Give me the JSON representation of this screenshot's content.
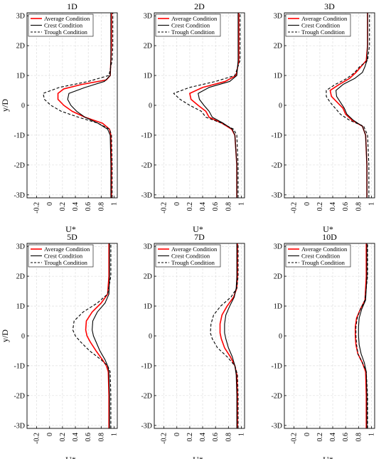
{
  "figure": {
    "ylabel": "y/D",
    "xlabel": "U*"
  },
  "legend": {
    "entries": [
      {
        "label": "Average Condition",
        "color": "#ff0000",
        "dash": "solid"
      },
      {
        "label": "Crest Condition",
        "color": "#000000",
        "dash": "solid"
      },
      {
        "label": "Trough Condition",
        "color": "#000000",
        "dash": "dashed"
      }
    ]
  },
  "chart_data": [
    {
      "type": "line",
      "title": "1D",
      "xlabel": "U*",
      "ylabel": "y/D",
      "xlim": [
        -0.35,
        1.05
      ],
      "ylim": [
        -3.1,
        3.1
      ],
      "xticks": [
        -0.2,
        0,
        0.2,
        0.4,
        0.6,
        0.8,
        1
      ],
      "xtick_labels": [
        "-0.2",
        "0",
        "0.2",
        "0.4",
        "0.6",
        "0.8",
        "1"
      ],
      "yticks": [
        -3,
        -2,
        -1,
        0,
        1,
        2,
        3
      ],
      "ytick_labels": [
        "-3D",
        "-2D",
        "-1D",
        "0",
        "1D",
        "2D",
        "3D"
      ],
      "grid": true,
      "legend": "top-right",
      "series": [
        {
          "name": "Average Condition",
          "color": "#ff0000",
          "dash": "solid",
          "y": [
            -3.1,
            -2,
            -1,
            -0.8,
            -0.6,
            -0.4,
            -0.2,
            0,
            0.2,
            0.4,
            0.55,
            0.7,
            0.85,
            1,
            1.5,
            2,
            3.1
          ],
          "x": [
            0.96,
            0.96,
            0.95,
            0.93,
            0.82,
            0.55,
            0.35,
            0.22,
            0.13,
            0.13,
            0.22,
            0.5,
            0.88,
            0.94,
            0.95,
            0.96,
            0.96
          ]
        },
        {
          "name": "Crest Condition",
          "color": "#000000",
          "dash": "solid",
          "y": [
            -3.1,
            -2,
            -1,
            -0.8,
            -0.6,
            -0.4,
            -0.2,
            0,
            0.2,
            0.4,
            0.6,
            0.8,
            1,
            1.5,
            2,
            3.1
          ],
          "x": [
            0.95,
            0.95,
            0.94,
            0.9,
            0.75,
            0.55,
            0.42,
            0.33,
            0.28,
            0.3,
            0.55,
            0.85,
            0.94,
            0.95,
            0.95,
            0.95
          ]
        },
        {
          "name": "Trough Condition",
          "color": "#000000",
          "dash": "dashed",
          "y": [
            -3.1,
            -2,
            -1,
            -0.8,
            -0.6,
            -0.4,
            -0.2,
            0,
            0.2,
            0.4,
            0.6,
            0.8,
            1,
            1.5,
            2,
            3.1
          ],
          "x": [
            0.97,
            0.97,
            0.96,
            0.93,
            0.75,
            0.45,
            0.18,
            0.02,
            -0.08,
            -0.1,
            0.15,
            0.6,
            0.92,
            0.97,
            0.98,
            0.98
          ]
        }
      ]
    },
    {
      "type": "line",
      "title": "2D",
      "xlabel": "U*",
      "ylabel": "",
      "xlim": [
        -0.35,
        1.05
      ],
      "ylim": [
        -3.1,
        3.1
      ],
      "xticks": [
        -0.2,
        0,
        0.2,
        0.4,
        0.6,
        0.8,
        1
      ],
      "xtick_labels": [
        "-0.2",
        "0",
        "0.2",
        "0.4",
        "0.6",
        "0.8",
        "1"
      ],
      "yticks": [
        -3,
        -2,
        -1,
        0,
        1,
        2,
        3
      ],
      "ytick_labels": [
        "-3D",
        "-2D",
        "-1D",
        "0",
        "1D",
        "2D",
        "3D"
      ],
      "grid": true,
      "legend": "top-right",
      "series": [
        {
          "name": "Average Condition",
          "color": "#ff0000",
          "dash": "solid",
          "y": [
            -3.1,
            -2,
            -1,
            -0.8,
            -0.6,
            -0.4,
            -0.2,
            0,
            0.2,
            0.4,
            0.6,
            0.8,
            1,
            1.5,
            2,
            3.1
          ],
          "x": [
            0.93,
            0.93,
            0.9,
            0.85,
            0.7,
            0.5,
            0.45,
            0.33,
            0.22,
            0.2,
            0.4,
            0.75,
            0.92,
            0.96,
            0.96,
            0.96
          ]
        },
        {
          "name": "Crest Condition",
          "color": "#000000",
          "dash": "solid",
          "y": [
            -3.1,
            -2,
            -1,
            -0.8,
            -0.6,
            -0.4,
            -0.2,
            0,
            0.2,
            0.4,
            0.6,
            0.8,
            1,
            1.5,
            2,
            3.1
          ],
          "x": [
            0.93,
            0.93,
            0.9,
            0.86,
            0.72,
            0.55,
            0.5,
            0.42,
            0.35,
            0.33,
            0.5,
            0.82,
            0.93,
            0.95,
            0.95,
            0.95
          ]
        },
        {
          "name": "Trough Condition",
          "color": "#000000",
          "dash": "dashed",
          "y": [
            -3.1,
            -2,
            -1,
            -0.8,
            -0.6,
            -0.4,
            -0.2,
            0,
            0.2,
            0.4,
            0.6,
            0.8,
            1,
            1.5,
            2,
            3.1
          ],
          "x": [
            0.95,
            0.95,
            0.93,
            0.88,
            0.7,
            0.45,
            0.38,
            0.2,
            0.05,
            -0.05,
            0.2,
            0.6,
            0.9,
            0.98,
            0.98,
            0.98
          ]
        }
      ]
    },
    {
      "type": "line",
      "title": "3D",
      "xlabel": "U*",
      "ylabel": "",
      "xlim": [
        -0.35,
        1.05
      ],
      "ylim": [
        -3.1,
        3.1
      ],
      "xticks": [
        -0.2,
        0,
        0.2,
        0.4,
        0.6,
        0.8,
        1
      ],
      "xtick_labels": [
        "-0.2",
        "0",
        "0.2",
        "0.4",
        "0.6",
        "0.8",
        "1"
      ],
      "yticks": [
        -3,
        -2,
        -1,
        0,
        1,
        2,
        3
      ],
      "ytick_labels": [
        "-3D",
        "-2D",
        "-1D",
        "0",
        "1D",
        "2D",
        "3D"
      ],
      "grid": true,
      "legend": "top-right",
      "series": [
        {
          "name": "Average Condition",
          "color": "#ff0000",
          "dash": "solid",
          "y": [
            -3.1,
            -2,
            -1,
            -0.7,
            -0.5,
            -0.3,
            -0.1,
            0.1,
            0.3,
            0.5,
            0.7,
            0.9,
            1.1,
            1.3,
            1.5,
            2,
            3.1
          ],
          "x": [
            0.93,
            0.93,
            0.91,
            0.86,
            0.7,
            0.6,
            0.56,
            0.47,
            0.38,
            0.36,
            0.5,
            0.66,
            0.76,
            0.84,
            0.92,
            0.94,
            0.94
          ]
        },
        {
          "name": "Crest Condition",
          "color": "#000000",
          "dash": "solid",
          "y": [
            -3.1,
            -2,
            -1,
            -0.7,
            -0.5,
            -0.3,
            -0.1,
            0.1,
            0.3,
            0.5,
            0.7,
            0.9,
            1.1,
            1.3,
            1.5,
            2,
            3.1
          ],
          "x": [
            0.93,
            0.93,
            0.91,
            0.86,
            0.72,
            0.62,
            0.58,
            0.52,
            0.46,
            0.45,
            0.56,
            0.74,
            0.86,
            0.9,
            0.93,
            0.94,
            0.94
          ]
        },
        {
          "name": "Trough Condition",
          "color": "#000000",
          "dash": "dashed",
          "y": [
            -3.1,
            -2,
            -1,
            -0.7,
            -0.5,
            -0.3,
            -0.1,
            0.1,
            0.3,
            0.5,
            0.7,
            0.9,
            1.1,
            1.3,
            1.5,
            2,
            3.1
          ],
          "x": [
            0.96,
            0.96,
            0.94,
            0.88,
            0.66,
            0.52,
            0.44,
            0.36,
            0.3,
            0.3,
            0.44,
            0.62,
            0.74,
            0.82,
            0.94,
            0.97,
            0.97
          ]
        }
      ]
    },
    {
      "type": "line",
      "title": "5D",
      "xlabel": "U*",
      "ylabel": "y/D",
      "xlim": [
        -0.35,
        1.05
      ],
      "ylim": [
        -3.1,
        3.1
      ],
      "xticks": [
        -0.2,
        0,
        0.2,
        0.4,
        0.6,
        0.8,
        1
      ],
      "xtick_labels": [
        "-0.2",
        "0",
        "0.2",
        "0.4",
        "0.6",
        "0.8",
        "1"
      ],
      "yticks": [
        -3,
        -2,
        -1,
        0,
        1,
        2,
        3
      ],
      "ytick_labels": [
        "-3D",
        "-2D",
        "-1D",
        "0",
        "1D",
        "2D",
        "3D"
      ],
      "grid": true,
      "legend": "top-right",
      "series": [
        {
          "name": "Average Condition",
          "color": "#ff0000",
          "dash": "solid",
          "y": [
            -3.1,
            -2,
            -1.2,
            -1,
            -0.8,
            -0.5,
            -0.2,
            0,
            0.2,
            0.5,
            0.8,
            1.1,
            1.4,
            2,
            3.1
          ],
          "x": [
            0.92,
            0.92,
            0.91,
            0.88,
            0.82,
            0.72,
            0.63,
            0.58,
            0.56,
            0.57,
            0.66,
            0.8,
            0.9,
            0.92,
            0.92
          ]
        },
        {
          "name": "Crest Condition",
          "color": "#000000",
          "dash": "solid",
          "y": [
            -3.1,
            -2,
            -1.2,
            -1,
            -0.8,
            -0.5,
            -0.2,
            0,
            0.2,
            0.5,
            0.8,
            1.1,
            1.4,
            2,
            3.1
          ],
          "x": [
            0.93,
            0.93,
            0.92,
            0.9,
            0.86,
            0.78,
            0.72,
            0.68,
            0.66,
            0.67,
            0.74,
            0.86,
            0.92,
            0.93,
            0.93
          ]
        },
        {
          "name": "Trough Condition",
          "color": "#000000",
          "dash": "dashed",
          "y": [
            -3.1,
            -2,
            -1.2,
            -1,
            -0.8,
            -0.5,
            -0.2,
            0,
            0.2,
            0.5,
            0.8,
            1.1,
            1.4,
            2,
            3.1
          ],
          "x": [
            0.95,
            0.95,
            0.94,
            0.9,
            0.8,
            0.62,
            0.48,
            0.4,
            0.36,
            0.38,
            0.52,
            0.74,
            0.9,
            0.95,
            0.95
          ]
        }
      ]
    },
    {
      "type": "line",
      "title": "7D",
      "xlabel": "U*",
      "ylabel": "",
      "xlim": [
        -0.35,
        1.05
      ],
      "ylim": [
        -3.1,
        3.1
      ],
      "xticks": [
        -0.2,
        0,
        0.2,
        0.4,
        0.6,
        0.8,
        1
      ],
      "xtick_labels": [
        "-0.2",
        "0",
        "0.2",
        "0.4",
        "0.6",
        "0.8",
        "1"
      ],
      "yticks": [
        -3,
        -2,
        -1,
        0,
        1,
        2,
        3
      ],
      "ytick_labels": [
        "-3D",
        "-2D",
        "-1D",
        "0",
        "1D",
        "2D",
        "3D"
      ],
      "grid": true,
      "legend": "top-right",
      "series": [
        {
          "name": "Average Condition",
          "color": "#ff0000",
          "dash": "solid",
          "y": [
            -3.1,
            -2,
            -1.3,
            -1,
            -0.7,
            -0.4,
            -0.1,
            0.1,
            0.4,
            0.7,
            1,
            1.3,
            1.6,
            2,
            3.1
          ],
          "x": [
            0.94,
            0.94,
            0.93,
            0.9,
            0.83,
            0.74,
            0.69,
            0.67,
            0.67,
            0.7,
            0.78,
            0.88,
            0.93,
            0.94,
            0.94
          ]
        },
        {
          "name": "Crest Condition",
          "color": "#000000",
          "dash": "solid",
          "y": [
            -3.1,
            -2,
            -1.3,
            -1,
            -0.7,
            -0.4,
            -0.1,
            0.1,
            0.4,
            0.7,
            1,
            1.3,
            1.6,
            2,
            3.1
          ],
          "x": [
            0.93,
            0.93,
            0.92,
            0.9,
            0.86,
            0.8,
            0.76,
            0.74,
            0.74,
            0.76,
            0.82,
            0.89,
            0.92,
            0.93,
            0.93
          ]
        },
        {
          "name": "Trough Condition",
          "color": "#000000",
          "dash": "dashed",
          "y": [
            -3.1,
            -2,
            -1.3,
            -1,
            -0.7,
            -0.4,
            -0.1,
            0.1,
            0.4,
            0.7,
            1,
            1.3,
            1.6,
            2,
            3.1
          ],
          "x": [
            0.95,
            0.95,
            0.94,
            0.9,
            0.78,
            0.63,
            0.55,
            0.52,
            0.53,
            0.57,
            0.68,
            0.84,
            0.93,
            0.95,
            0.95
          ]
        }
      ]
    },
    {
      "type": "line",
      "title": "10D",
      "xlabel": "U*",
      "ylabel": "",
      "xlim": [
        -0.35,
        1.05
      ],
      "ylim": [
        -3.1,
        3.1
      ],
      "xticks": [
        -0.2,
        0,
        0.2,
        0.4,
        0.6,
        0.8,
        1
      ],
      "xtick_labels": [
        "-0.2",
        "0",
        "0.2",
        "0.4",
        "0.6",
        "0.8",
        "1"
      ],
      "yticks": [
        -3,
        -2,
        -1,
        0,
        1,
        2,
        3
      ],
      "ytick_labels": [
        "-3D",
        "-2D",
        "-1D",
        "0",
        "1D",
        "2D",
        "3D"
      ],
      "grid": true,
      "legend": "top-right",
      "series": [
        {
          "name": "Average Condition",
          "color": "#ff0000",
          "dash": "solid",
          "y": [
            -3.1,
            -2,
            -1.2,
            -0.9,
            -0.6,
            -0.3,
            0,
            0.3,
            0.6,
            0.9,
            1.2,
            2,
            3.1
          ],
          "x": [
            0.92,
            0.92,
            0.91,
            0.86,
            0.79,
            0.76,
            0.75,
            0.75,
            0.77,
            0.83,
            0.9,
            0.92,
            0.92
          ]
        },
        {
          "name": "Crest Condition",
          "color": "#000000",
          "dash": "solid",
          "y": [
            -3.1,
            -2,
            -1.2,
            -0.9,
            -0.6,
            -0.3,
            0,
            0.3,
            0.6,
            0.9,
            1.2,
            2,
            3.1
          ],
          "x": [
            0.93,
            0.93,
            0.92,
            0.89,
            0.84,
            0.81,
            0.8,
            0.8,
            0.81,
            0.85,
            0.91,
            0.93,
            0.93
          ]
        },
        {
          "name": "Trough Condition",
          "color": "#000000",
          "dash": "dashed",
          "y": [
            -3.1,
            -2,
            -1.2,
            -0.9,
            -0.6,
            -0.3,
            0,
            0.3,
            0.6,
            0.9,
            1.2,
            2,
            3.1
          ],
          "x": [
            0.94,
            0.94,
            0.92,
            0.86,
            0.79,
            0.77,
            0.76,
            0.76,
            0.78,
            0.83,
            0.9,
            0.94,
            0.94
          ]
        }
      ]
    }
  ]
}
